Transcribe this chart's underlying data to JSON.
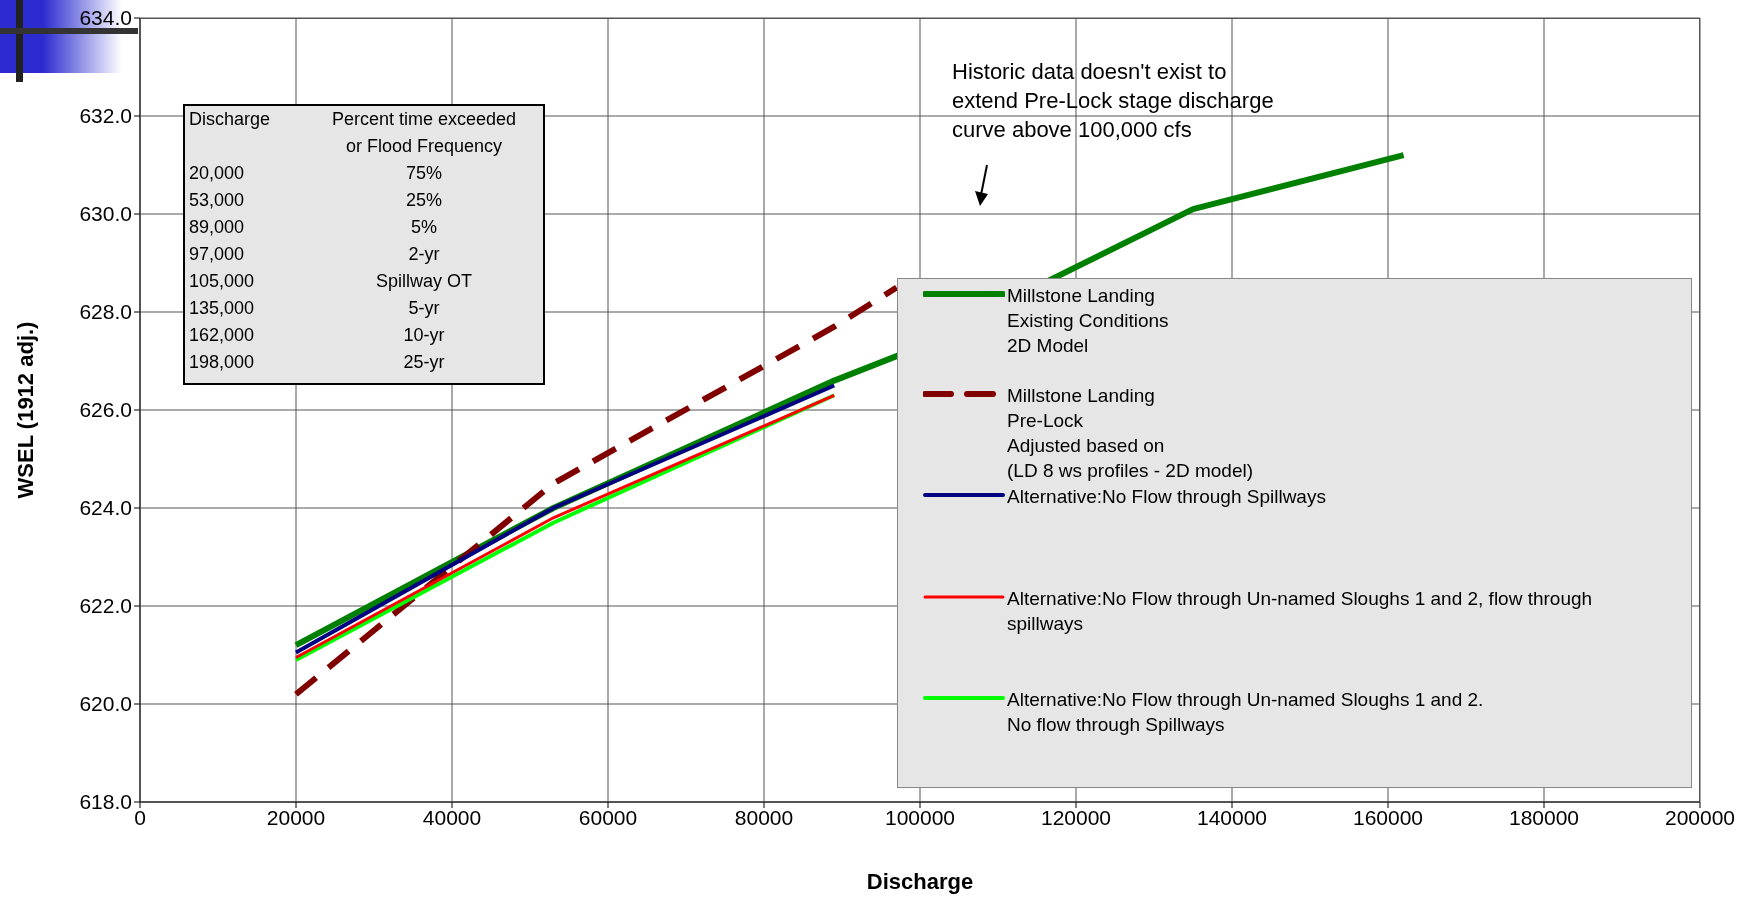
{
  "chart_data": {
    "type": "line",
    "xlabel": "Discharge",
    "ylabel": "WSEL (1912 adj.)",
    "xlim": [
      0,
      200000
    ],
    "xticks": [
      0,
      20000,
      40000,
      60000,
      80000,
      100000,
      120000,
      140000,
      160000,
      180000,
      200000
    ],
    "ylim": [
      618,
      634
    ],
    "yticks": [
      {
        "value": 618,
        "label": "618.0"
      },
      {
        "value": 620,
        "label": "620.0"
      },
      {
        "value": 622,
        "label": "622.0"
      },
      {
        "value": 624,
        "label": "624.0"
      },
      {
        "value": 626,
        "label": "626.0"
      },
      {
        "value": 628,
        "label": "628.0"
      },
      {
        "value": 630,
        "label": "630.0"
      },
      {
        "value": 632,
        "label": "632.0"
      },
      {
        "value": 634,
        "label": "634.0"
      }
    ],
    "grid": true,
    "legend": "right",
    "marker": "none",
    "series": [
      {
        "name": "Millstone Landing\nExisting Conditions\n2D Model",
        "color": "#008000",
        "line_style": "solid",
        "x": [
          20000,
          53000,
          89000,
          97000,
          135000,
          162000
        ],
        "values": [
          621.2,
          624.0,
          626.6,
          627.1,
          630.1,
          631.2
        ]
      },
      {
        "name": "Millstone Landing\nPre-Lock\nAdjusted based on\n(LD 8 ws profiles - 2D model)",
        "color": "#800000",
        "line_style": "dashed",
        "x": [
          20000,
          53000,
          89000,
          97000
        ],
        "values": [
          620.2,
          624.5,
          627.7,
          628.5
        ]
      },
      {
        "name": "Alternative:No Flow through Spillways",
        "color": "#000080",
        "line_style": "solid",
        "x": [
          20000,
          53000,
          89000
        ],
        "values": [
          621.05,
          624.0,
          626.5
        ]
      },
      {
        "name": "Alternative:No Flow through Un-named Sloughs 1 and 2, flow through spillways",
        "color": "#ff0000",
        "line_style": "solid",
        "x": [
          20000,
          53000,
          89000
        ],
        "values": [
          620.95,
          623.8,
          626.3
        ]
      },
      {
        "name": "Alternative:No Flow through Un-named Sloughs 1 and 2.\nNo flow through Spillways",
        "color": "#00ff00",
        "line_style": "solid",
        "x": [
          20000,
          53000,
          89000
        ],
        "values": [
          620.9,
          623.7,
          626.3
        ]
      }
    ],
    "annotations": [
      "Historic data doesn't exist to\nextend Pre-Lock stage discharge\ncurve above 100,000 cfs",
      "Discharge",
      "Percent time exceeded\nor Flood Frequency",
      "20,000",
      "75%",
      "53,000",
      "25%",
      "89,000",
      "5%",
      "97,000",
      "2-yr",
      "105,000",
      "Spillway OT",
      "135,000",
      "5-yr",
      "162,000",
      "10-yr",
      "198,000",
      "25-yr"
    ]
  }
}
